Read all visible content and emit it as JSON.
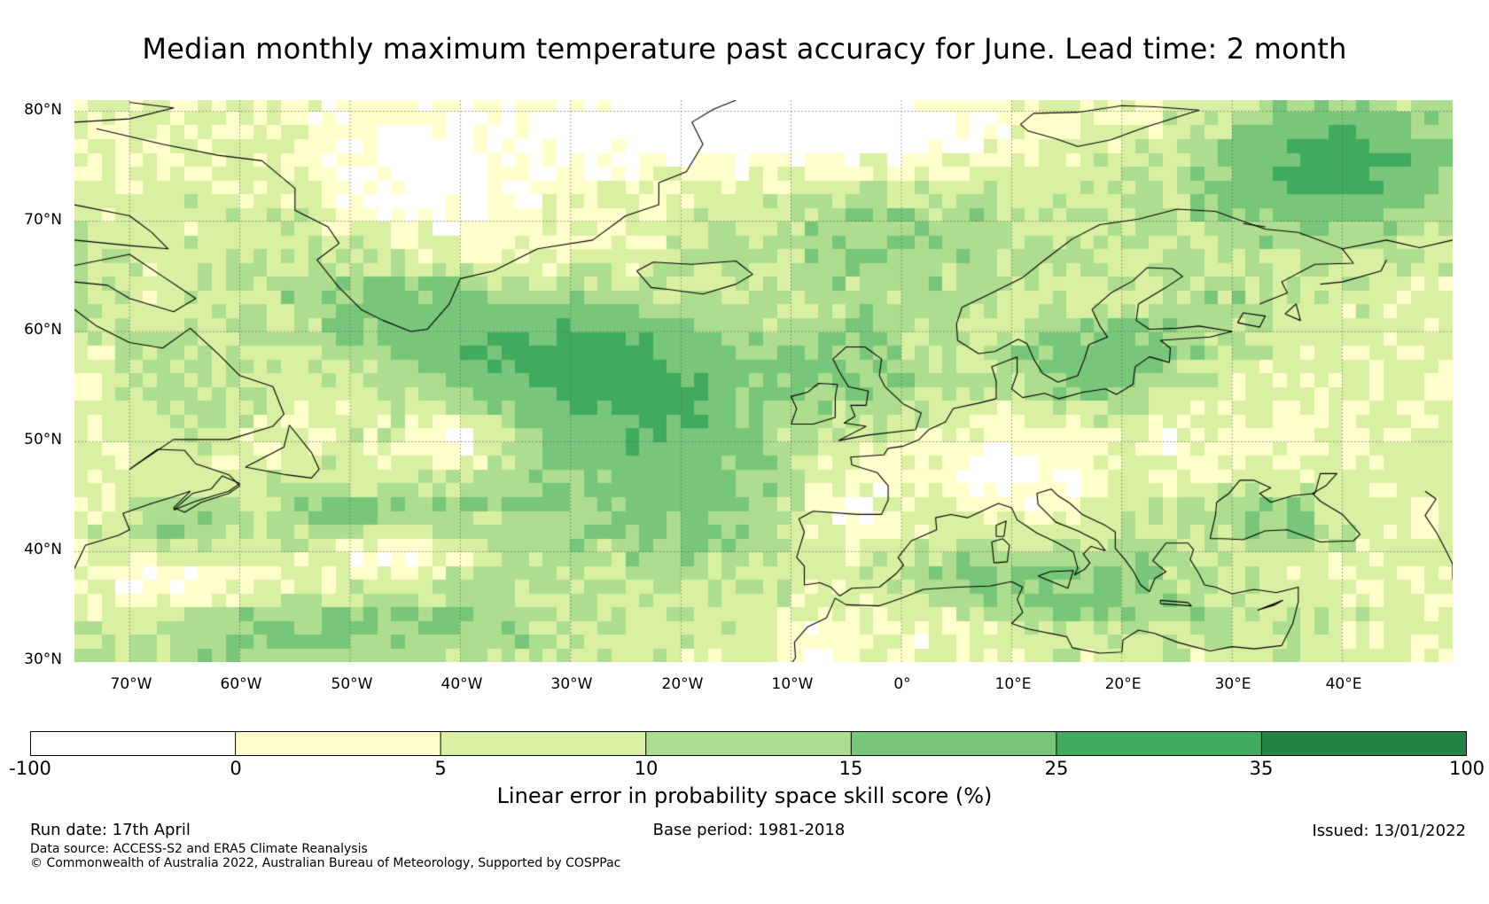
{
  "title": "Median monthly maximum temperature past accuracy for June. Lead time: 2 month",
  "map": {
    "region": "North Atlantic and Europe",
    "lon_range": [
      -75,
      50
    ],
    "lat_range": [
      30,
      81
    ],
    "lat_labels": [
      "80°N",
      "70°N",
      "60°N",
      "50°N",
      "40°N",
      "30°N"
    ],
    "lon_labels": [
      "70°W",
      "60°W",
      "50°W",
      "40°W",
      "30°W",
      "20°W",
      "10°W",
      "0°",
      "10°E",
      "20°E",
      "30°E",
      "40°E"
    ],
    "coastline_color": "#000000",
    "gridline_color": "#666666"
  },
  "colorbar": {
    "label": "Linear error in probability space skill score (%)",
    "tick_labels": [
      "-100",
      "0",
      "5",
      "10",
      "15",
      "25",
      "35",
      "100"
    ],
    "bins": [
      {
        "min": -100,
        "max": 0,
        "color": "#ffffff"
      },
      {
        "min": 0,
        "max": 5,
        "color": "#ffffcc"
      },
      {
        "min": 5,
        "max": 10,
        "color": "#d9f0a3"
      },
      {
        "min": 10,
        "max": 15,
        "color": "#addd8e"
      },
      {
        "min": 15,
        "max": 25,
        "color": "#78c679"
      },
      {
        "min": 25,
        "max": 35,
        "color": "#41ab5d"
      },
      {
        "min": 35,
        "max": 100,
        "color": "#238443"
      }
    ]
  },
  "footer": {
    "run_date": "Run date: 17th April",
    "base_period": "Base period: 1981-2018",
    "issued": "Issued: 13/01/2022",
    "data_source": "Data source: ACCESS-S2 and ERA5 Climate Reanalysis",
    "copyright": "© Commonwealth of Australia 2022, Australian Bureau of Meteorology, Supported by COSPPac"
  }
}
